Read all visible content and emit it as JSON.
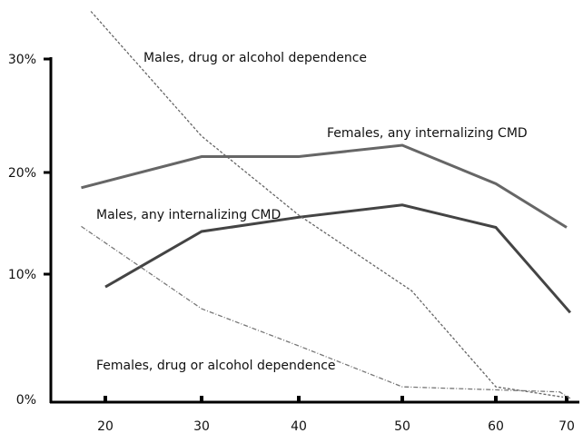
{
  "chart_data": {
    "type": "line",
    "title": "",
    "xlabel": "",
    "ylabel": "",
    "x_ticks": [
      20,
      30,
      40,
      50,
      60,
      70
    ],
    "x_tick_labels": [
      "20",
      "30",
      "40",
      "50",
      "60",
      "70"
    ],
    "y_ticks": [
      0,
      10,
      20,
      30
    ],
    "y_tick_labels": [
      "0%",
      "10%",
      "20%",
      "30%"
    ],
    "ylim": [
      0,
      30
    ],
    "grid": false,
    "legend": "none (series labelled inline)",
    "series": [
      {
        "name": "Females, any internalizing CMD",
        "style": "solid",
        "color": "#666666",
        "x": [
          17.5,
          30,
          40,
          50,
          60,
          70
        ],
        "y": [
          18.5,
          21.4,
          21.4,
          22.4,
          18.9,
          14.6
        ]
      },
      {
        "name": "Males, any internalizing CMD",
        "style": "solid",
        "color": "#444444",
        "x": [
          20,
          30,
          40,
          50,
          60,
          70.5
        ],
        "y": [
          9.0,
          14.2,
          15.6,
          16.8,
          14.6,
          7.0
        ]
      },
      {
        "name": "Males, drug or alcohol dependence",
        "style": "dashed",
        "color": "#666666",
        "x": [
          18.5,
          30,
          40,
          51,
          60,
          69.5
        ],
        "y": [
          34.2,
          23.2,
          15.8,
          8.7,
          1.2,
          0.4
        ]
      },
      {
        "name": "Females, drug or alcohol dependence",
        "style": "dashdot",
        "color": "#777777",
        "x": [
          17.5,
          30,
          40,
          50,
          69,
          70.5
        ],
        "y": [
          14.7,
          7.3,
          4.4,
          1.2,
          0.8,
          0.3
        ]
      }
    ]
  }
}
